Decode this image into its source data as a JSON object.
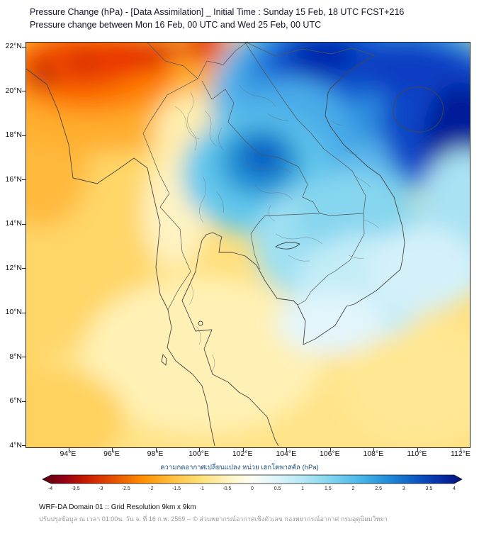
{
  "header": {
    "title_line1": "Pressure Change (hPa) - [Data Assimilation] _ Initial Time : Sunday 15 Feb, 18 UTC FCST+216",
    "title_line2": "Pressure change between Mon 16 Feb, 00 UTC and Wed 25 Feb, 00 UTC"
  },
  "map": {
    "y_ticks": [
      "22°N",
      "20°N",
      "18°N",
      "16°N",
      "14°N",
      "12°N",
      "10°N",
      "8°N",
      "6°N",
      "4°N"
    ],
    "x_ticks": [
      "94°E",
      "96°E",
      "98°E",
      "100°E",
      "102°E",
      "104°E",
      "106°E",
      "108°E",
      "110°E",
      "112°E"
    ]
  },
  "colorbar": {
    "label": "ความกดอากาศเปลี่ยนแปลง หน่วย เฮกโตพาสคัล (hPa)",
    "tick_labels": [
      "-4",
      "-3.5",
      "-3",
      "-2.5",
      "-2",
      "-1.5",
      "-1",
      "-0.5",
      "0",
      "0.5",
      "1",
      "1.5",
      "2",
      "2.5",
      "3",
      "3.5",
      "4"
    ],
    "min": -4,
    "max": 4,
    "colors": {
      "negative_extreme": "#5c0012",
      "negative": "#e85000",
      "zero": "#fdfdf5",
      "positive": "#45b5e8",
      "positive_extreme": "#03127a"
    }
  },
  "footer": {
    "line1": "WRF-DA Domain 01 :: Grid Resolution 9km x 9km",
    "line2": "ปรับปรุงข้อมูล ณ เวลา 01:00น. วัน จ. ที่ 16 ก.พ. 2569 -- © ส่วนพยากรณ์อากาศเชิงตัวเลข กองพยากรณ์อากาศ กรมอุตุนิยมวิทยา"
  },
  "chart_data": {
    "type": "heatmap",
    "title": "Pressure Change (hPa)",
    "x_range_deg_east": [
      92,
      113.5
    ],
    "y_range_deg_north": [
      4,
      22
    ],
    "colorbar_range_hpa": [
      -4,
      4
    ],
    "regions": [
      {
        "area": "northwest corner (Myanmar)",
        "approx_hpa": -3.5
      },
      {
        "area": "top center near 100E 22N",
        "approx_hpa": -3
      },
      {
        "area": "northeast quadrant (N Vietnam / Gulf of Tonkin)",
        "approx_hpa": 4
      },
      {
        "area": "east edge near 111E 17-20N",
        "approx_hpa": 4
      },
      {
        "area": "central Laos / NE Thailand near 102E 17N",
        "approx_hpa": 2.5
      },
      {
        "area": "Cambodia / S Vietnam",
        "approx_hpa": 1
      },
      {
        "area": "most of Thailand and lower map (yellow)",
        "approx_hpa": -1
      },
      {
        "area": "south-central peninsula pale band",
        "approx_hpa": -0.5
      }
    ]
  }
}
